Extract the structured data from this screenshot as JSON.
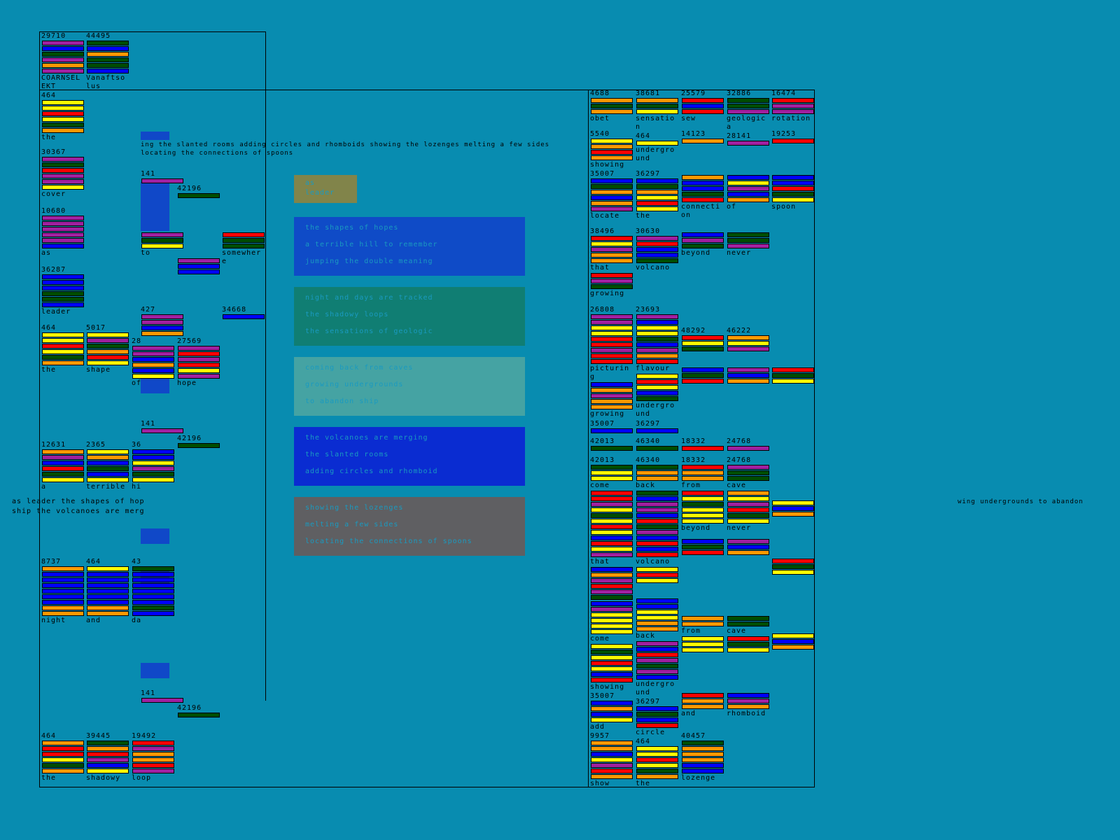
{
  "palette": {
    "Y": "#ffff00",
    "O": "#ff9900",
    "R": "#ff0000",
    "P": "#a020a0",
    "G": "#004d00",
    "B": "#0000ff"
  },
  "background": "#088cb0",
  "cards": [
    {
      "value": "29710",
      "label": "COARNSELEKT",
      "stripes": "PBGPOP"
    },
    {
      "value": "44495",
      "label": "Vanaftsolus",
      "stripes": "GBOGGB"
    },
    {
      "value": "464",
      "label": "the",
      "stripes": "YYRYGO"
    },
    {
      "value": "30367",
      "label": "cover",
      "stripes": "PGRPPY"
    },
    {
      "value": "10680",
      "label": "as",
      "stripes": "PPPPPB"
    },
    {
      "value": "36287",
      "label": "leader",
      "stripes": "BBBGGB"
    },
    {
      "value": "464",
      "label": "the",
      "stripes": "YYRYGO"
    },
    {
      "value": "5017",
      "label": "shape",
      "stripes": "YPGORY"
    },
    {
      "value": "28",
      "label": "of",
      "stripes": "PPBOBY"
    },
    {
      "value": "12631",
      "label": "a",
      "stripes": "OPBRGY"
    },
    {
      "value": "2365",
      "label": "terrible",
      "stripes": "YOBGBY"
    },
    {
      "value": "36",
      "label": "hi",
      "stripes": "BBYPGY"
    },
    {
      "value": "8737",
      "label": "night",
      "stripes": "OBBBBBBOO"
    },
    {
      "value": "464",
      "label": "and",
      "stripes": "YBBBBBBOO"
    },
    {
      "value": "43",
      "label": "da",
      "stripes": "GBBBBBBGB"
    },
    {
      "value": "464",
      "label": "the",
      "stripes": "ORRYGO"
    },
    {
      "value": "39445",
      "label": "shadowy",
      "stripes": "GORPBY"
    },
    {
      "value": "19492",
      "label": "loop",
      "stripes": "RPOORP"
    },
    {
      "value": "141",
      "label": "",
      "stripes": "P"
    },
    {
      "value": "42196",
      "label": "",
      "stripes": "G"
    },
    {
      "value": "427",
      "label": "",
      "stripes": "PPBO"
    },
    {
      "value": "27569",
      "label": "hope",
      "stripes": "PRPRYP"
    },
    {
      "value": "34668",
      "label": "",
      "stripes": "B"
    },
    {
      "value": "141",
      "label": "",
      "stripes": "P"
    },
    {
      "value": "42196",
      "label": "",
      "stripes": "G"
    },
    {
      "value": "141",
      "label": "",
      "stripes": "P"
    },
    {
      "value": "42196",
      "label": "",
      "stripes": "G"
    },
    {
      "value": "",
      "label": "to",
      "stripes": "PGY"
    },
    {
      "value": "",
      "label": "",
      "stripes": "PBB"
    },
    {
      "value": "",
      "label": "somewhere",
      "stripes": "RGG"
    },
    {
      "value": "4688",
      "label": "obet",
      "stripes": "OGO"
    },
    {
      "value": "38681",
      "label": "sensation",
      "stripes": "OGY"
    },
    {
      "value": "25579",
      "label": "sew",
      "stripes": "RBR"
    },
    {
      "value": "32886",
      "label": "geologica",
      "stripes": "GGP"
    },
    {
      "value": "16474",
      "label": "rotation",
      "stripes": "RPP"
    },
    {
      "value": "5540",
      "label": "showing",
      "stripes": "YORO"
    },
    {
      "value": "464",
      "label": "underground",
      "stripes": "Y"
    },
    {
      "value": "14123",
      "label": "",
      "stripes": "O"
    },
    {
      "value": "28141",
      "label": "",
      "stripes": "P"
    },
    {
      "value": "19253",
      "label": "",
      "stripes": "R"
    },
    {
      "value": "35007",
      "label": "locate",
      "stripes": "BGOBOP"
    },
    {
      "value": "36297",
      "label": "the",
      "stripes": "BGOYRY"
    },
    {
      "value": "",
      "label": "connection",
      "stripes": "OBBGR"
    },
    {
      "value": "",
      "label": "of",
      "stripes": "BYPBO"
    },
    {
      "value": "",
      "label": "spoon",
      "stripes": "BBRGY"
    },
    {
      "value": "38496",
      "label": "that",
      "stripes": "RYPOO"
    },
    {
      "value": "30630",
      "label": "volcano",
      "stripes": "PRBBG"
    },
    {
      "value": "",
      "label": "beyond",
      "stripes": "BPG"
    },
    {
      "value": "",
      "label": "never",
      "stripes": "GGP"
    },
    {
      "value": "",
      "label": "growing",
      "stripes": "RPG"
    },
    {
      "value": "26808",
      "label": "picturing",
      "stripes": "PPYYRRPRR"
    },
    {
      "value": "23693",
      "label": "flavour",
      "stripes": "PBYYGBPOR"
    },
    {
      "value": "48292",
      "label": "",
      "stripes": "RYG"
    },
    {
      "value": "46222",
      "label": "",
      "stripes": "OYP"
    },
    {
      "value": "",
      "label": "growing",
      "stripes": "BOPOO"
    },
    {
      "value": "",
      "label": "underground",
      "stripes": "YRYBG"
    },
    {
      "value": "",
      "label": "",
      "stripes": "BGR"
    },
    {
      "value": "",
      "label": "",
      "stripes": "PBO"
    },
    {
      "value": "",
      "label": "",
      "stripes": "RGY"
    },
    {
      "value": "35007",
      "label": "",
      "stripes": "B"
    },
    {
      "value": "36297",
      "label": "",
      "stripes": "B"
    },
    {
      "value": "42013",
      "label": "",
      "stripes": "G"
    },
    {
      "value": "46340",
      "label": "",
      "stripes": "G"
    },
    {
      "value": "18332",
      "label": "",
      "stripes": "R"
    },
    {
      "value": "24768",
      "label": "",
      "stripes": "P"
    },
    {
      "value": "42013",
      "label": "come",
      "stripes": "GYY"
    },
    {
      "value": "46340",
      "label": "back",
      "stripes": "GOO"
    },
    {
      "value": "18332",
      "label": "from",
      "stripes": "ROO"
    },
    {
      "value": "24768",
      "label": "cave",
      "stripes": "PGG"
    },
    {
      "value": "",
      "label": "that",
      "stripes": "RRPYGYRYBRYP"
    },
    {
      "value": "",
      "label": "volcano",
      "stripes": "GBPPBRGPBRBR"
    },
    {
      "value": "",
      "label": "beyond",
      "stripes": "RYGYYY"
    },
    {
      "value": "",
      "label": "never",
      "stripes": "OYPRGY"
    },
    {
      "value": "",
      "label": "",
      "stripes": "YBO"
    },
    {
      "value": "",
      "label": "",
      "stripes": "BOPRPG"
    },
    {
      "value": "",
      "label": "",
      "stripes": "YRY"
    },
    {
      "value": "",
      "label": "",
      "stripes": "BGR"
    },
    {
      "value": "",
      "label": "",
      "stripes": "PBO"
    },
    {
      "value": "",
      "label": "",
      "stripes": "RGY"
    },
    {
      "value": "",
      "label": "come",
      "stripes": "BPYYYY"
    },
    {
      "value": "",
      "label": "back",
      "stripes": "BBYYOO"
    },
    {
      "value": "",
      "label": "from",
      "stripes": "OO"
    },
    {
      "value": "",
      "label": "cave",
      "stripes": "GG"
    },
    {
      "value": "",
      "label": "showing",
      "stripes": "YGYRYBR"
    },
    {
      "value": "",
      "label": "underground",
      "stripes": "PBRPGPB"
    },
    {
      "value": "",
      "label": "",
      "stripes": "YYY"
    },
    {
      "value": "",
      "label": "",
      "stripes": "RGY"
    },
    {
      "value": "",
      "label": "",
      "stripes": "YBO"
    },
    {
      "value": "35007",
      "label": "add",
      "stripes": "BOBY"
    },
    {
      "value": "36297",
      "label": "circle",
      "stripes": "BGBR"
    },
    {
      "value": "",
      "label": "and",
      "stripes": "ROO"
    },
    {
      "value": "",
      "label": "rhomboid",
      "stripes": "BPO"
    },
    {
      "value": "9957",
      "label": "show",
      "stripes": "OOBYPRO"
    },
    {
      "value": "464",
      "label": "the",
      "stripes": "YYRYGO"
    },
    {
      "value": "40457",
      "label": "lozenge",
      "stripes": "GOOOBB"
    }
  ],
  "overlays": [
    {
      "lines": [
        "as",
        "leader"
      ]
    },
    {
      "lines": [
        "the shapes of hopes",
        "a terrible hill to remember",
        "jumping the double meaning"
      ]
    },
    {
      "lines": [
        "night and days are tracked",
        "the shadowy loops",
        "the sensations of geologic"
      ]
    },
    {
      "lines": [
        "coming back from caves",
        "growing undergrounds",
        "to abandon ship"
      ]
    },
    {
      "lines": [
        "the volcanoes are merging",
        "the slanted rooms",
        "adding circles and rhomboid"
      ]
    },
    {
      "lines": [
        "showing the lozenges",
        "melting a few sides",
        "locating the connections of spoons"
      ]
    }
  ],
  "texts": {
    "banner": "ing the slanted rooms adding circles and rhomboids showing the lozenges melting a few sides locating the connections of spoons",
    "merge_1": "as leader the shapes of hop",
    "merge_2": "ship the volcanoes are merg",
    "right_fragment": "wing undergrounds to abandon"
  }
}
